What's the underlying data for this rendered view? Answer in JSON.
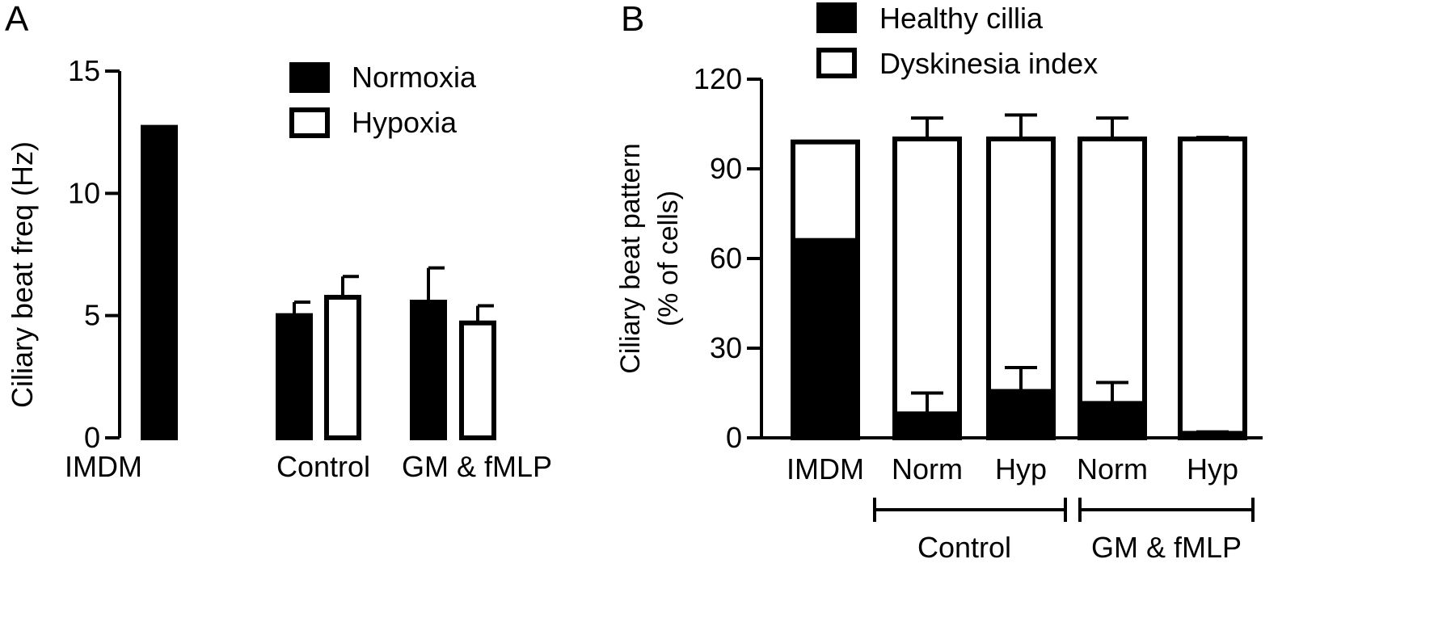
{
  "panels": {
    "a_label": "A",
    "b_label": "B"
  },
  "chart_data": [
    {
      "type": "bar",
      "panel": "A",
      "ylabel": "Ciliary beat freq (Hz)",
      "xlabel": "",
      "ylim": [
        0,
        15
      ],
      "yticks": [
        0,
        5,
        10,
        15
      ],
      "legend": {
        "placement": "top-right",
        "entries": [
          {
            "name": "Normoxia",
            "color": "#000000"
          },
          {
            "name": "Hypoxia",
            "color": "#ffffff"
          }
        ]
      },
      "groups": [
        {
          "label": "IMDM",
          "bars": [
            {
              "series": "IMDM",
              "fill": "#000000",
              "value": 12.7,
              "err": 0
            }
          ]
        },
        {
          "label": "Control",
          "bars": [
            {
              "series": "Normoxia",
              "fill": "#000000",
              "value": 5.0,
              "err": 0.55
            },
            {
              "series": "Hypoxia",
              "fill": "#ffffff",
              "value": 5.75,
              "err": 0.85
            }
          ]
        },
        {
          "label": "GM & fMLP",
          "bars": [
            {
              "series": "Normoxia",
              "fill": "#000000",
              "value": 5.55,
              "err": 1.4
            },
            {
              "series": "Hypoxia",
              "fill": "#ffffff",
              "value": 4.7,
              "err": 0.7
            }
          ]
        }
      ]
    },
    {
      "type": "bar",
      "stacked": true,
      "panel": "B",
      "ylabel_line1": "Ciliary beat pattern",
      "ylabel_line2": "(% of cells)",
      "ylim": [
        0,
        120
      ],
      "yticks": [
        0,
        30,
        60,
        90,
        120
      ],
      "legend": {
        "placement": "top-left",
        "entries": [
          {
            "name": "Healthy cillia",
            "color": "#000000"
          },
          {
            "name": "Dyskinesia index",
            "color": "#ffffff"
          }
        ]
      },
      "categories": [
        "IMDM",
        "Norm",
        "Hyp",
        "Norm",
        "Hyp"
      ],
      "series": [
        {
          "name": "Healthy cillia",
          "values": [
            66,
            8,
            15.5,
            11.5,
            1.5
          ],
          "errors": [
            0,
            7,
            8,
            7,
            0.5
          ]
        },
        {
          "name": "Dyskinesia index",
          "values": [
            33,
            92,
            84.5,
            88.5,
            98.5
          ],
          "errors": [
            0,
            7,
            8,
            7,
            0.5
          ]
        }
      ],
      "group_labels": [
        {
          "label": "Control",
          "from": 1,
          "to": 2
        },
        {
          "label": "GM & fMLP",
          "from": 3,
          "to": 4
        }
      ]
    }
  ]
}
